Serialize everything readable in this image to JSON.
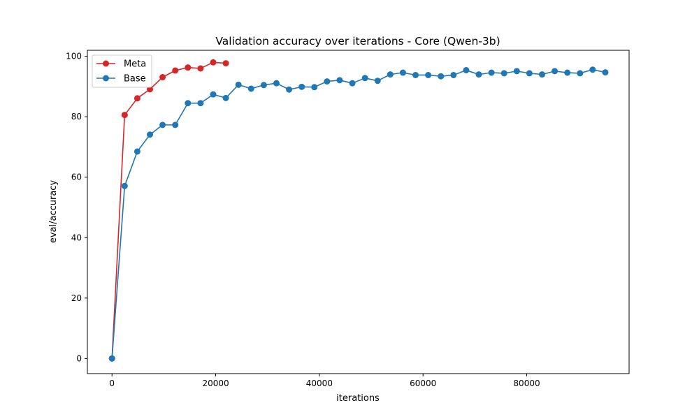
{
  "chart_data": {
    "type": "line",
    "title": "Validation accuracy over iterations - Core (Qwen-3b)",
    "xlabel": "iterations",
    "ylabel": "eval/accuracy",
    "xlim": [
      -4750,
      99750
    ],
    "ylim": [
      -5,
      102
    ],
    "xticks": [
      0,
      20000,
      40000,
      60000,
      80000
    ],
    "xtick_labels": [
      "0",
      "20000",
      "40000",
      "60000",
      "80000"
    ],
    "yticks": [
      0,
      20,
      40,
      60,
      80,
      100
    ],
    "ytick_labels": [
      "0",
      "20",
      "40",
      "60",
      "80",
      "100"
    ],
    "grid": false,
    "legend_position": "top-left",
    "marker": "circle",
    "series": [
      {
        "name": "Meta",
        "color": "#d62728",
        "x": [
          0,
          2440,
          4880,
          7320,
          9760,
          12200,
          14640,
          17080,
          19520,
          21960
        ],
        "y": [
          0,
          80.6,
          86.1,
          89.1,
          93.1,
          95.3,
          96.3,
          96.0,
          98.0,
          97.7
        ]
      },
      {
        "name": "Base",
        "color": "#1f77b4",
        "x": [
          0,
          2440,
          4880,
          7320,
          9760,
          12200,
          14640,
          17080,
          19520,
          21960,
          24400,
          26840,
          29280,
          31720,
          34160,
          36600,
          39040,
          41480,
          43920,
          46360,
          48800,
          51240,
          53680,
          56120,
          58560,
          61000,
          63440,
          65880,
          68320,
          70760,
          73200,
          75640,
          78080,
          80520,
          82960,
          85400,
          87840,
          90280,
          92720,
          95160
        ],
        "y": [
          0,
          57.1,
          68.5,
          74.1,
          77.3,
          77.3,
          84.5,
          84.5,
          87.4,
          86.2,
          90.6,
          89.3,
          90.5,
          91.1,
          89.0,
          89.9,
          89.8,
          91.7,
          92.1,
          91.1,
          92.8,
          91.9,
          94.0,
          94.6,
          93.8,
          93.8,
          93.4,
          93.8,
          95.4,
          94.0,
          94.6,
          94.4,
          95.1,
          94.4,
          94.0,
          95.1,
          94.6,
          94.4,
          95.6,
          94.7
        ]
      }
    ]
  }
}
